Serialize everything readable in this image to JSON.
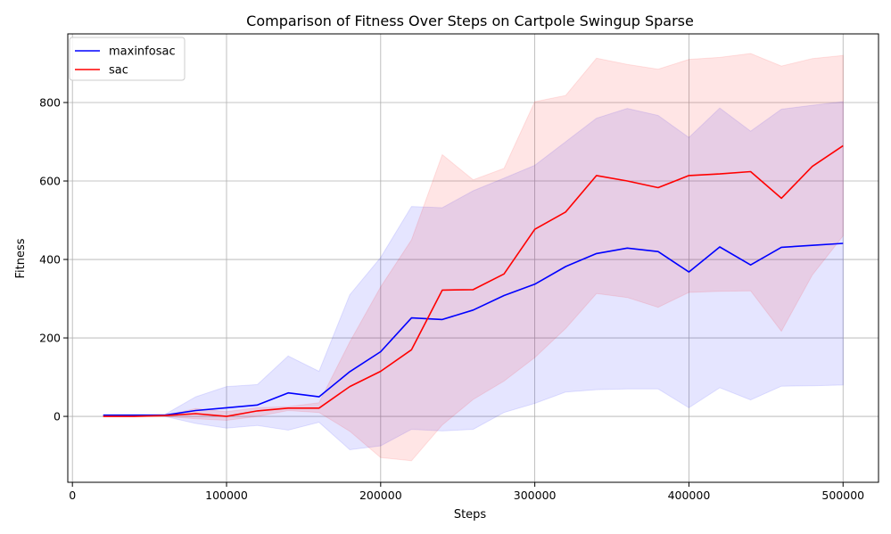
{
  "chart_data": {
    "type": "line",
    "title": "Comparison of Fitness Over Steps on Cartpole Swingup Sparse",
    "xlabel": "Steps",
    "ylabel": "Fitness",
    "xlim": [
      -3000,
      523000
    ],
    "ylim": [
      -168,
      975
    ],
    "xticks": [
      0,
      100000,
      200000,
      300000,
      400000,
      500000
    ],
    "xtick_labels": [
      "0",
      "100000",
      "200000",
      "300000",
      "400000",
      "500000"
    ],
    "yticks": [
      0,
      200,
      400,
      600,
      800
    ],
    "ytick_labels": [
      "0",
      "200",
      "400",
      "600",
      "800"
    ],
    "grid": true,
    "legend_position": "top-left",
    "x": [
      20000,
      40000,
      60000,
      80000,
      100000,
      120000,
      140000,
      160000,
      180000,
      200000,
      220000,
      240000,
      260000,
      280000,
      300000,
      320000,
      340000,
      360000,
      380000,
      400000,
      420000,
      440000,
      460000,
      480000,
      500000
    ],
    "series": [
      {
        "name": "maxinfosac",
        "color": "#0000ff",
        "band_color": "#0000ff",
        "values": [
          3,
          3,
          3,
          15,
          22,
          29,
          60,
          50,
          114,
          165,
          251,
          247,
          271,
          308,
          337,
          382,
          415,
          429,
          420,
          368,
          432,
          386,
          431,
          436,
          441
        ],
        "upper": [
          3,
          3,
          5,
          50,
          76,
          81,
          154,
          115,
          310,
          405,
          535,
          532,
          575,
          607,
          640,
          700,
          760,
          785,
          767,
          711,
          786,
          727,
          783,
          793,
          802
        ],
        "lower": [
          3,
          3,
          0,
          -18,
          -30,
          -23,
          -35,
          -15,
          -85,
          -75,
          -33,
          -37,
          -33,
          10,
          33,
          62,
          68,
          70,
          70,
          22,
          73,
          42,
          77,
          78,
          80
        ]
      },
      {
        "name": "sac",
        "color": "#ff0000",
        "band_color": "#ff0000",
        "values": [
          0,
          0,
          2,
          7,
          0,
          14,
          21,
          21,
          76,
          115,
          170,
          322,
          323,
          363,
          477,
          521,
          614,
          600,
          583,
          614,
          618,
          624,
          556,
          637,
          690
        ],
        "upper": [
          0,
          0,
          2,
          20,
          12,
          22,
          25,
          35,
          190,
          330,
          450,
          667,
          603,
          632,
          802,
          818,
          913,
          897,
          885,
          910,
          915,
          925,
          893,
          912,
          920
        ],
        "lower": [
          0,
          0,
          0,
          -6,
          -10,
          0,
          15,
          10,
          -38,
          -105,
          -113,
          -22,
          43,
          90,
          150,
          224,
          313,
          303,
          278,
          316,
          319,
          320,
          217,
          360,
          460
        ]
      }
    ]
  }
}
